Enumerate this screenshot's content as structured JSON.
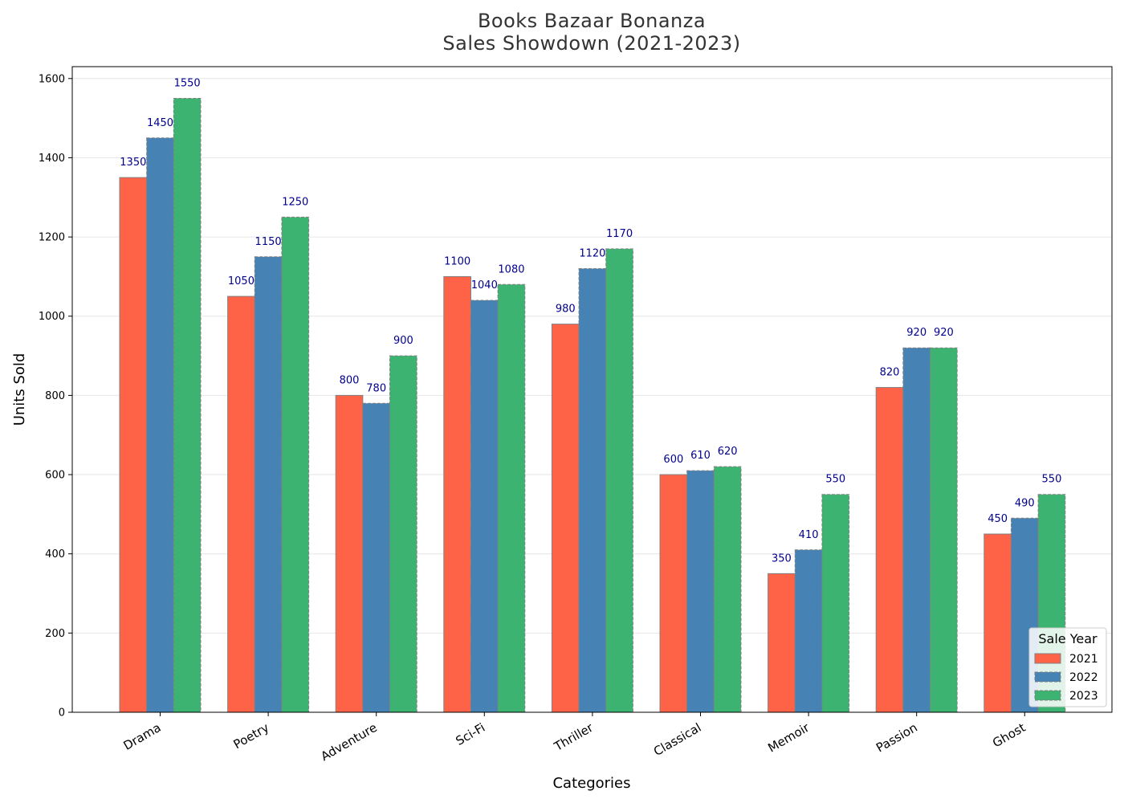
{
  "chart_data": {
    "type": "bar",
    "title": "Books Bazaar Bonanza\nSales Showdown (2021-2023)",
    "title_lines": [
      "Books Bazaar Bonanza",
      "Sales Showdown (2021-2023)"
    ],
    "xlabel": "Categories",
    "ylabel": "Units Sold",
    "categories": [
      "Drama",
      "Poetry",
      "Adventure",
      "Sci-Fi",
      "Thriller",
      "Classical",
      "Memoir",
      "Passion",
      "Ghost"
    ],
    "series": [
      {
        "name": "2021",
        "color": "#ff6347",
        "values": [
          1350,
          1050,
          800,
          1100,
          980,
          600,
          350,
          820,
          450
        ]
      },
      {
        "name": "2022",
        "color": "#4682b4",
        "values": [
          1450,
          1150,
          780,
          1040,
          1120,
          610,
          410,
          920,
          490
        ]
      },
      {
        "name": "2023",
        "color": "#3cb371",
        "values": [
          1550,
          1250,
          900,
          1080,
          1170,
          620,
          550,
          920,
          550
        ]
      }
    ],
    "ylim": [
      0,
      1630
    ],
    "yticks": [
      0,
      200,
      400,
      600,
      800,
      1000,
      1200,
      1400,
      1600
    ],
    "grid": "horizontal",
    "legend": {
      "title": "Sale Year",
      "placement": "bottom-right"
    },
    "data_label_color": "#00008b",
    "edge_color": "#808080"
  }
}
